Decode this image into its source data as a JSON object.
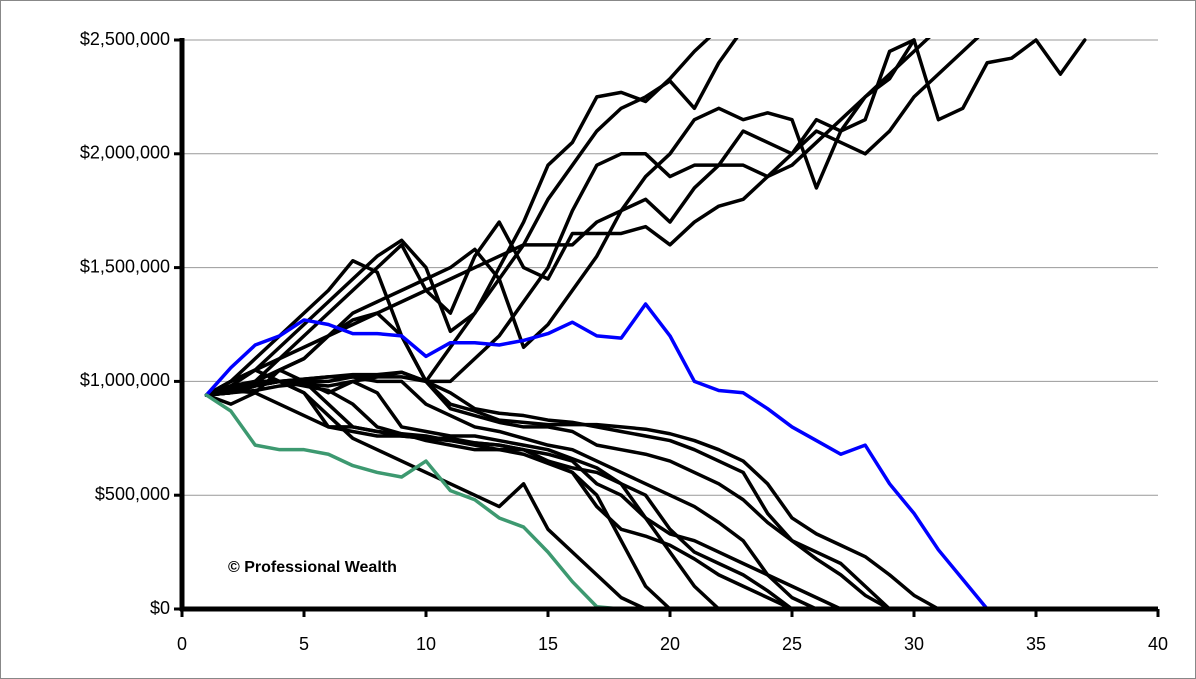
{
  "chart_data": {
    "type": "line",
    "annotation": "© Professional Wealth",
    "x": [
      1,
      2,
      3,
      4,
      5,
      6,
      7,
      8,
      9,
      10,
      11,
      12,
      13,
      14,
      15,
      16,
      17,
      18,
      19,
      20,
      21,
      22,
      23,
      24,
      25,
      26,
      27,
      28,
      29,
      30,
      31,
      32,
      33,
      34,
      35,
      36,
      37
    ],
    "xlim": [
      0,
      40
    ],
    "xticks": [
      0,
      5,
      10,
      15,
      20,
      25,
      30,
      35,
      40
    ],
    "ylim": [
      0,
      2500000
    ],
    "yticks": [
      {
        "value": 0,
        "label": "$0"
      },
      {
        "value": 500000,
        "label": "$500,000"
      },
      {
        "value": 1000000,
        "label": "$1,000,000"
      },
      {
        "value": 1500000,
        "label": "$1,500,000"
      },
      {
        "value": 2000000,
        "label": "$2,000,000"
      },
      {
        "value": 2500000,
        "label": "$2,500,000"
      }
    ],
    "grid": true,
    "series": [
      {
        "color": "#000000",
        "values": [
          940000,
          1000000,
          1100000,
          1200000,
          1300000,
          1400000,
          1530000,
          1480000,
          1200000,
          1000000,
          1150000,
          1300000,
          1450000,
          1600000,
          1800000,
          1950000,
          2100000,
          2200000,
          2250000,
          2320000,
          2200000,
          2400000,
          2550000,
          null,
          null,
          null,
          null,
          null,
          null,
          null,
          null,
          null,
          null,
          null,
          null,
          null,
          null
        ]
      },
      {
        "color": "#000000",
        "values": [
          940000,
          1000000,
          1050000,
          1150000,
          1250000,
          1350000,
          1450000,
          1550000,
          1620000,
          1500000,
          1220000,
          1300000,
          1500000,
          1700000,
          1950000,
          2050000,
          2250000,
          2270000,
          2230000,
          2330000,
          2450000,
          2550000,
          null,
          null,
          null,
          null,
          null,
          null,
          null,
          null,
          null,
          null,
          null,
          null,
          null,
          null,
          null
        ]
      },
      {
        "color": "#000000",
        "values": [
          940000,
          950000,
          1000000,
          1100000,
          1200000,
          1300000,
          1400000,
          1500000,
          1600000,
          1400000,
          1300000,
          1550000,
          1700000,
          1500000,
          1450000,
          1650000,
          1650000,
          1650000,
          1680000,
          1600000,
          1700000,
          1770000,
          1800000,
          1900000,
          1950000,
          2050000,
          2150000,
          2250000,
          2330000,
          2500000,
          2150000,
          2200000,
          2400000,
          2420000,
          2500000,
          2350000,
          2500000
        ]
      },
      {
        "color": "#000000",
        "values": [
          940000,
          960000,
          1000000,
          1050000,
          1100000,
          1200000,
          1300000,
          1350000,
          1400000,
          1450000,
          1500000,
          1580000,
          1450000,
          1150000,
          1250000,
          1400000,
          1550000,
          1750000,
          1900000,
          2000000,
          2150000,
          2200000,
          2150000,
          2180000,
          2150000,
          1850000,
          2100000,
          2250000,
          2350000,
          2450000,
          2550000,
          null,
          null,
          null,
          null,
          null,
          null
        ]
      },
      {
        "color": "#000000",
        "values": [
          940000,
          960000,
          1000000,
          1050000,
          1100000,
          1200000,
          1270000,
          1300000,
          1200000,
          1000000,
          1000000,
          1100000,
          1200000,
          1350000,
          1500000,
          1750000,
          1950000,
          2000000,
          2000000,
          1900000,
          1950000,
          1950000,
          2100000,
          2050000,
          2000000,
          2150000,
          2100000,
          2150000,
          2450000,
          2500000,
          null,
          null,
          null,
          null,
          null,
          null,
          null
        ]
      },
      {
        "color": "#000000",
        "values": [
          940000,
          980000,
          1050000,
          1100000,
          1150000,
          1200000,
          1250000,
          1300000,
          1350000,
          1400000,
          1450000,
          1500000,
          1550000,
          1600000,
          1600000,
          1600000,
          1700000,
          1750000,
          1800000,
          1700000,
          1850000,
          1950000,
          1950000,
          1900000,
          2000000,
          2100000,
          2050000,
          2000000,
          2100000,
          2250000,
          2350000,
          2450000,
          2550000,
          null,
          null,
          null,
          null
        ]
      },
      {
        "color": "#000000",
        "values": [
          940000,
          980000,
          1000000,
          1000000,
          950000,
          850000,
          750000,
          700000,
          650000,
          600000,
          550000,
          500000,
          450000,
          550000,
          350000,
          250000,
          150000,
          50000,
          0,
          null,
          null,
          null,
          null,
          null,
          null,
          null,
          null,
          null,
          null,
          null,
          null,
          null,
          null,
          null,
          null,
          null,
          null
        ]
      },
      {
        "color": "#000000",
        "values": [
          940000,
          900000,
          950000,
          1050000,
          1000000,
          900000,
          800000,
          780000,
          760000,
          750000,
          740000,
          730000,
          720000,
          700000,
          650000,
          600000,
          500000,
          300000,
          100000,
          0,
          null,
          null,
          null,
          null,
          null,
          null,
          null,
          null,
          null,
          null,
          null,
          null,
          null,
          null,
          null,
          null,
          null
        ]
      },
      {
        "color": "#000000",
        "values": [
          940000,
          950000,
          980000,
          1000000,
          1000000,
          950000,
          1000000,
          950000,
          800000,
          780000,
          760000,
          760000,
          740000,
          720000,
          700000,
          660000,
          620000,
          550000,
          400000,
          250000,
          100000,
          0,
          null,
          null,
          null,
          null,
          null,
          null,
          null,
          null,
          null,
          null,
          null,
          null,
          null,
          null,
          null
        ]
      },
      {
        "color": "#000000",
        "values": [
          940000,
          1000000,
          1050000,
          1000000,
          950000,
          800000,
          800000,
          780000,
          770000,
          760000,
          740000,
          720000,
          700000,
          680000,
          640000,
          600000,
          450000,
          350000,
          320000,
          280000,
          220000,
          150000,
          100000,
          50000,
          0,
          null,
          null,
          null,
          null,
          null,
          null,
          null,
          null,
          null,
          null,
          null,
          null
        ]
      },
      {
        "color": "#000000",
        "values": [
          940000,
          960000,
          950000,
          900000,
          850000,
          800000,
          780000,
          760000,
          760000,
          750000,
          750000,
          730000,
          720000,
          700000,
          650000,
          620000,
          600000,
          550000,
          500000,
          350000,
          250000,
          200000,
          150000,
          80000,
          0,
          null,
          null,
          null,
          null,
          null,
          null,
          null,
          null,
          null,
          null,
          null,
          null
        ]
      },
      {
        "color": "#000000",
        "values": [
          940000,
          950000,
          1000000,
          1000000,
          980000,
          960000,
          900000,
          800000,
          770000,
          740000,
          720000,
          700000,
          700000,
          700000,
          680000,
          650000,
          550000,
          500000,
          400000,
          330000,
          300000,
          250000,
          200000,
          150000,
          100000,
          50000,
          0,
          null,
          null,
          null,
          null,
          null,
          null,
          null,
          null,
          null,
          null
        ]
      },
      {
        "color": "#000000",
        "values": [
          940000,
          950000,
          980000,
          1000000,
          1000000,
          1000000,
          1020000,
          1000000,
          1000000,
          900000,
          850000,
          800000,
          780000,
          750000,
          720000,
          700000,
          650000,
          600000,
          550000,
          500000,
          450000,
          380000,
          300000,
          150000,
          50000,
          0,
          null,
          null,
          null,
          null,
          null,
          null,
          null,
          null,
          null,
          null,
          null
        ]
      },
      {
        "color": "#000000",
        "values": [
          940000,
          960000,
          980000,
          1000000,
          1010000,
          1020000,
          1030000,
          1030000,
          1040000,
          1000000,
          880000,
          850000,
          820000,
          800000,
          800000,
          780000,
          720000,
          700000,
          680000,
          650000,
          600000,
          550000,
          480000,
          380000,
          300000,
          250000,
          200000,
          100000,
          0,
          null,
          null,
          null,
          null,
          null,
          null,
          null,
          null
        ]
      },
      {
        "color": "#000000",
        "values": [
          940000,
          970000,
          990000,
          1000000,
          1010000,
          1020000,
          1020000,
          1020000,
          1020000,
          1000000,
          900000,
          870000,
          830000,
          820000,
          810000,
          810000,
          810000,
          800000,
          790000,
          770000,
          740000,
          700000,
          650000,
          550000,
          400000,
          330000,
          280000,
          230000,
          150000,
          60000,
          0,
          null,
          null,
          null,
          null,
          null,
          null
        ]
      },
      {
        "color": "#000000",
        "values": [
          940000,
          950000,
          960000,
          980000,
          990000,
          980000,
          1000000,
          1020000,
          1040000,
          1000000,
          950000,
          880000,
          860000,
          850000,
          830000,
          820000,
          800000,
          780000,
          760000,
          740000,
          700000,
          650000,
          600000,
          420000,
          300000,
          220000,
          150000,
          60000,
          0,
          null,
          null,
          null,
          null,
          null,
          null,
          null,
          null
        ]
      },
      {
        "color": "#0000ff",
        "values": [
          940000,
          1060000,
          1160000,
          1200000,
          1270000,
          1250000,
          1210000,
          1210000,
          1200000,
          1110000,
          1170000,
          1170000,
          1160000,
          1180000,
          1210000,
          1260000,
          1200000,
          1190000,
          1340000,
          1200000,
          1000000,
          960000,
          950000,
          880000,
          800000,
          740000,
          680000,
          720000,
          550000,
          420000,
          260000,
          130000,
          0,
          null,
          null,
          null,
          null
        ]
      },
      {
        "color": "#3d9970",
        "values": [
          940000,
          870000,
          720000,
          700000,
          700000,
          680000,
          630000,
          600000,
          580000,
          650000,
          520000,
          480000,
          400000,
          360000,
          250000,
          120000,
          10000,
          0,
          null,
          null,
          null,
          null,
          null,
          null,
          null,
          null,
          null,
          null,
          null,
          null,
          null,
          null,
          null,
          null,
          null,
          null,
          null
        ]
      }
    ]
  }
}
